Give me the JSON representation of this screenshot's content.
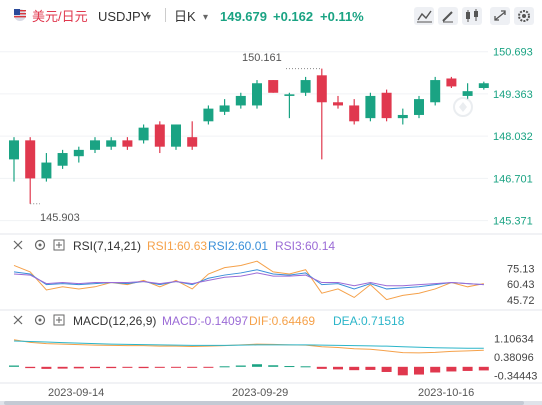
{
  "header": {
    "pair_label": "美元/日元",
    "symbol": "USDJPY",
    "symbol_caret": "▾",
    "period": "日K",
    "period_caret": "▾",
    "price": "149.679",
    "change": "+0.162",
    "change_pct": "+0.11%"
  },
  "toolbar": {
    "icons": [
      "trend-icon",
      "pencil-icon",
      "candlestick-type-icon",
      "expand-icon",
      "settings-icon"
    ]
  },
  "price_axis": [
    "150.693",
    "149.363",
    "148.032",
    "146.701",
    "145.371"
  ],
  "annotations": {
    "high": "150.161",
    "low": "145.903"
  },
  "rsi": {
    "name": "RSI(7,14,21)",
    "rsi1": "RSI1:60.63",
    "rsi2": "RSI2:60.01",
    "rsi3": "RSI3:60.14",
    "axis": [
      "75.13",
      "60.43",
      "45.72"
    ]
  },
  "macd": {
    "name": "MACD(12,26,9)",
    "macd": "MACD:-0.14097",
    "dif": "DIF:0.64469",
    "dea": "DEA:0.71518",
    "axis": [
      "1.10634",
      "0.38096",
      "-0.34443"
    ]
  },
  "dates": [
    "2023-09-14",
    "2023-09-29",
    "2023-10-16"
  ],
  "colors": {
    "up": "#1aa383",
    "down": "#e0384e",
    "header_up": "#1aa383",
    "axis_text": "#1aa383",
    "rsi1": "#f5a14a",
    "rsi2": "#3a8fd9",
    "rsi3": "#9b6bd6",
    "dif": "#f5a14a",
    "dea": "#2bb5c9"
  },
  "chart_data": {
    "type": "candlestick",
    "ylim": [
      145.2,
      151.0
    ],
    "candles": [
      {
        "o": 147.3,
        "h": 148.0,
        "l": 146.6,
        "c": 147.9
      },
      {
        "o": 147.9,
        "h": 148.0,
        "l": 145.9,
        "c": 146.7
      },
      {
        "o": 146.7,
        "h": 147.5,
        "l": 146.6,
        "c": 147.2
      },
      {
        "o": 147.1,
        "h": 147.6,
        "l": 147.0,
        "c": 147.5
      },
      {
        "o": 147.4,
        "h": 147.7,
        "l": 147.2,
        "c": 147.6
      },
      {
        "o": 147.6,
        "h": 148.0,
        "l": 147.5,
        "c": 147.9
      },
      {
        "o": 147.7,
        "h": 148.0,
        "l": 147.6,
        "c": 147.9
      },
      {
        "o": 147.9,
        "h": 148.0,
        "l": 147.6,
        "c": 147.7
      },
      {
        "o": 147.9,
        "h": 148.4,
        "l": 147.8,
        "c": 148.3
      },
      {
        "o": 148.4,
        "h": 148.5,
        "l": 147.5,
        "c": 147.7
      },
      {
        "o": 147.7,
        "h": 148.4,
        "l": 147.6,
        "c": 148.4
      },
      {
        "o": 148.0,
        "h": 148.5,
        "l": 147.6,
        "c": 147.7
      },
      {
        "o": 148.5,
        "h": 149.0,
        "l": 148.4,
        "c": 148.9
      },
      {
        "o": 148.8,
        "h": 149.2,
        "l": 148.7,
        "c": 149.0
      },
      {
        "o": 149.0,
        "h": 149.4,
        "l": 148.9,
        "c": 149.3
      },
      {
        "o": 149.0,
        "h": 149.8,
        "l": 148.9,
        "c": 149.7
      },
      {
        "o": 149.8,
        "h": 149.8,
        "l": 149.4,
        "c": 149.4
      },
      {
        "o": 149.3,
        "h": 149.4,
        "l": 148.6,
        "c": 149.35
      },
      {
        "o": 149.4,
        "h": 149.9,
        "l": 149.3,
        "c": 149.8
      },
      {
        "o": 149.95,
        "h": 150.161,
        "l": 147.3,
        "c": 149.1
      },
      {
        "o": 149.1,
        "h": 149.3,
        "l": 148.9,
        "c": 149.0
      },
      {
        "o": 149.0,
        "h": 149.2,
        "l": 148.4,
        "c": 148.5
      },
      {
        "o": 148.6,
        "h": 149.4,
        "l": 148.5,
        "c": 149.3
      },
      {
        "o": 149.4,
        "h": 149.5,
        "l": 148.5,
        "c": 148.6
      },
      {
        "o": 148.6,
        "h": 148.9,
        "l": 148.4,
        "c": 148.7
      },
      {
        "o": 148.7,
        "h": 149.3,
        "l": 148.6,
        "c": 149.2
      },
      {
        "o": 149.1,
        "h": 149.9,
        "l": 149.0,
        "c": 149.8
      },
      {
        "o": 149.85,
        "h": 149.9,
        "l": 149.55,
        "c": 149.6
      },
      {
        "o": 149.3,
        "h": 149.7,
        "l": 149.2,
        "c": 149.45
      },
      {
        "o": 149.55,
        "h": 149.75,
        "l": 149.5,
        "c": 149.7
      }
    ],
    "rsi_ylim": [
      40,
      85
    ],
    "rsi1": [
      78,
      72,
      55,
      58,
      56,
      58,
      62,
      60,
      64,
      58,
      64,
      56,
      70,
      76,
      78,
      82,
      72,
      70,
      74,
      52,
      56,
      48,
      60,
      46,
      50,
      52,
      56,
      62,
      58,
      61
    ],
    "rsi2": [
      72,
      70,
      60,
      61,
      60,
      61,
      62,
      61,
      63,
      60,
      63,
      60,
      66,
      69,
      71,
      74,
      70,
      69,
      71,
      60,
      61,
      56,
      61,
      56,
      57,
      58,
      60,
      62,
      61,
      60
    ],
    "rsi3": [
      70,
      69,
      61,
      62,
      61,
      62,
      62,
      62,
      63,
      61,
      63,
      61,
      64,
      67,
      68,
      71,
      68,
      68,
      69,
      62,
      62,
      59,
      62,
      59,
      59,
      60,
      61,
      62,
      61,
      60
    ],
    "macd_ylim": [
      -0.55,
      1.35
    ],
    "macd_bars": [
      0.05,
      -0.05,
      -0.08,
      -0.07,
      -0.06,
      -0.05,
      -0.05,
      -0.04,
      -0.05,
      -0.04,
      -0.03,
      -0.03,
      -0.02,
      0.02,
      0.05,
      0.1,
      0.06,
      0.03,
      0.02,
      -0.08,
      -0.1,
      -0.13,
      -0.12,
      -0.2,
      -0.33,
      -0.3,
      -0.22,
      -0.18,
      -0.16,
      -0.14
    ],
    "dif": [
      1.05,
      0.95,
      0.9,
      0.88,
      0.86,
      0.84,
      0.83,
      0.82,
      0.82,
      0.8,
      0.8,
      0.79,
      0.8,
      0.82,
      0.85,
      0.88,
      0.87,
      0.85,
      0.84,
      0.78,
      0.75,
      0.7,
      0.68,
      0.62,
      0.55,
      0.54,
      0.56,
      0.6,
      0.62,
      0.64
    ],
    "dea": [
      1.0,
      0.98,
      0.96,
      0.94,
      0.92,
      0.9,
      0.88,
      0.87,
      0.86,
      0.85,
      0.84,
      0.83,
      0.83,
      0.83,
      0.84,
      0.85,
      0.85,
      0.85,
      0.85,
      0.84,
      0.83,
      0.82,
      0.81,
      0.8,
      0.78,
      0.76,
      0.74,
      0.73,
      0.72,
      0.72
    ]
  }
}
